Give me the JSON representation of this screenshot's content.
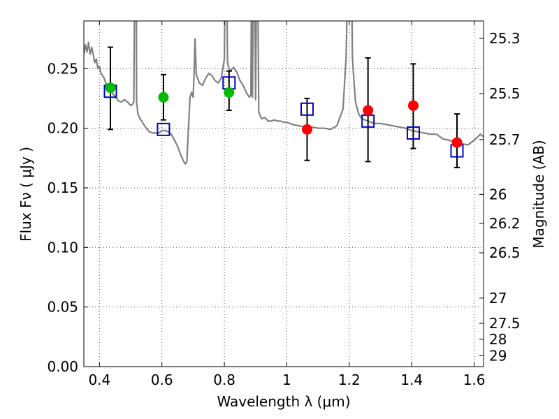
{
  "chart_data": {
    "type": "scatter",
    "xlabel": "Wavelength  λ (μm)",
    "ylabel_left": "Flux  Fν  ( μJy )",
    "ylabel_right": "Magnitude (AB)",
    "xlim": [
      0.35,
      1.63
    ],
    "ylim": [
      0.0,
      0.29
    ],
    "grid": true,
    "x_ticks": [
      0.4,
      0.6,
      0.8,
      1.0,
      1.2,
      1.4,
      1.6
    ],
    "x_tick_labels": [
      "0.4",
      "0.6",
      "0.8",
      "1",
      "1.2",
      "1.4",
      "1.6"
    ],
    "y_ticks": [
      0.0,
      0.05,
      0.1,
      0.15,
      0.2,
      0.25
    ],
    "y_tick_labels": [
      "0.00",
      "0.05",
      "0.10",
      "0.15",
      "0.20",
      "0.25"
    ],
    "right_ticks": [
      {
        "flux": 0.2754,
        "label": "25.3"
      },
      {
        "flux": 0.2291,
        "label": "25.5"
      },
      {
        "flux": 0.1905,
        "label": "25.7"
      },
      {
        "flux": 0.1445,
        "label": "26"
      },
      {
        "flux": 0.1202,
        "label": "26.2"
      },
      {
        "flux": 0.0955,
        "label": "26.5"
      },
      {
        "flux": 0.0575,
        "label": "27"
      },
      {
        "flux": 0.0363,
        "label": "27.5"
      },
      {
        "flux": 0.0229,
        "label": "28"
      },
      {
        "flux": 0.0091,
        "label": "29"
      }
    ],
    "model_spectrum": {
      "color": "#808080",
      "x": [
        0.35,
        0.355,
        0.36,
        0.365,
        0.37,
        0.375,
        0.38,
        0.385,
        0.39,
        0.395,
        0.4,
        0.405,
        0.41,
        0.415,
        0.42,
        0.425,
        0.43,
        0.435,
        0.44,
        0.445,
        0.45,
        0.46,
        0.47,
        0.48,
        0.49,
        0.5,
        0.505,
        0.51,
        0.515,
        0.517,
        0.519,
        0.521,
        0.523,
        0.53,
        0.54,
        0.55,
        0.56,
        0.57,
        0.58,
        0.59,
        0.6,
        0.61,
        0.62,
        0.63,
        0.64,
        0.65,
        0.66,
        0.67,
        0.675,
        0.68,
        0.683,
        0.687,
        0.69,
        0.695,
        0.7,
        0.703,
        0.706,
        0.71,
        0.72,
        0.73,
        0.74,
        0.75,
        0.76,
        0.77,
        0.78,
        0.79,
        0.8,
        0.805,
        0.81,
        0.815,
        0.82,
        0.825,
        0.83,
        0.84,
        0.85,
        0.86,
        0.87,
        0.88,
        0.885,
        0.888,
        0.89,
        0.895,
        0.9,
        0.905,
        0.91,
        0.915,
        0.92,
        0.93,
        0.94,
        0.95,
        0.96,
        0.97,
        0.98,
        0.99,
        1.0,
        1.02,
        1.04,
        1.06,
        1.08,
        1.1,
        1.12,
        1.14,
        1.16,
        1.18,
        1.19,
        1.2,
        1.205,
        1.21,
        1.215,
        1.22,
        1.23,
        1.24,
        1.26,
        1.28,
        1.3,
        1.32,
        1.34,
        1.36,
        1.38,
        1.4,
        1.42,
        1.44,
        1.46,
        1.48,
        1.5,
        1.52,
        1.54,
        1.56,
        1.58,
        1.6,
        1.62,
        1.63
      ],
      "y": [
        0.262,
        0.27,
        0.264,
        0.272,
        0.262,
        0.268,
        0.262,
        0.255,
        0.258,
        0.25,
        0.252,
        0.246,
        0.244,
        0.242,
        0.238,
        0.236,
        0.234,
        0.232,
        0.23,
        0.228,
        0.227,
        0.223,
        0.222,
        0.224,
        0.222,
        0.219,
        0.22,
        0.222,
        0.4,
        0.4,
        0.222,
        0.218,
        0.212,
        0.208,
        0.204,
        0.2,
        0.197,
        0.196,
        0.196,
        0.196,
        0.198,
        0.198,
        0.197,
        0.195,
        0.19,
        0.185,
        0.178,
        0.172,
        0.17,
        0.172,
        0.19,
        0.21,
        0.226,
        0.23,
        0.226,
        0.244,
        0.275,
        0.245,
        0.238,
        0.236,
        0.242,
        0.246,
        0.244,
        0.24,
        0.238,
        0.242,
        0.258,
        0.4,
        0.255,
        0.25,
        0.248,
        0.25,
        0.251,
        0.247,
        0.24,
        0.236,
        0.23,
        0.226,
        0.228,
        0.4,
        0.226,
        0.4,
        0.224,
        0.4,
        0.214,
        0.21,
        0.208,
        0.209,
        0.206,
        0.206,
        0.207,
        0.206,
        0.206,
        0.205,
        0.205,
        0.203,
        0.202,
        0.201,
        0.201,
        0.2,
        0.2,
        0.199,
        0.202,
        0.216,
        0.26,
        0.4,
        0.4,
        0.26,
        0.24,
        0.222,
        0.212,
        0.208,
        0.206,
        0.204,
        0.204,
        0.203,
        0.202,
        0.201,
        0.2,
        0.198,
        0.197,
        0.196,
        0.195,
        0.195,
        0.191,
        0.19,
        0.188,
        0.187,
        0.186,
        0.19,
        0.195,
        0.193
      ]
    },
    "series": [
      {
        "name": "",
        "marker": "square-open",
        "color": "#0000cc",
        "x": [
          0.435,
          0.605,
          0.815,
          1.065,
          1.26,
          1.405,
          1.545
        ],
        "y": [
          0.231,
          0.199,
          0.238,
          0.216,
          0.206,
          0.196,
          0.181
        ]
      },
      {
        "name": "",
        "marker": "circle",
        "color": "#00bb00",
        "x": [
          0.435,
          0.605,
          0.815
        ],
        "y": [
          0.234,
          0.226,
          0.23
        ],
        "yerr_low": [
          0.199,
          0.207,
          0.215
        ],
        "yerr_high": [
          0.268,
          0.245,
          0.248
        ]
      },
      {
        "name": "",
        "marker": "circle",
        "color": "#ff0000",
        "x": [
          1.065,
          1.26,
          1.405,
          1.545
        ],
        "y": [
          0.199,
          0.215,
          0.219,
          0.188
        ],
        "yerr_low": [
          0.173,
          0.172,
          0.183,
          0.167
        ],
        "yerr_high": [
          0.225,
          0.259,
          0.254,
          0.212
        ]
      }
    ]
  }
}
